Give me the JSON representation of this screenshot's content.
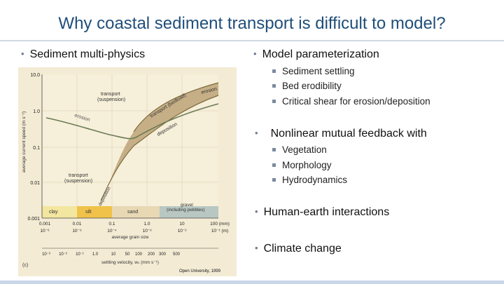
{
  "slide": {
    "title": "Why coastal sediment transport is difficult to model?",
    "left_bullet": "Sediment multi-physics",
    "right_bullets": [
      {
        "label": "Model parameterization",
        "subs": [
          "Sediment settling",
          "Bed erodibility",
          "Critical shear for erosion/deposition"
        ]
      },
      {
        "label": "Nonlinear mutual feedback with",
        "subs": [
          "Vegetation",
          "Morphology",
          "Hydrodynamics"
        ]
      },
      {
        "label": "Human-earth interactions",
        "subs": []
      },
      {
        "label": "Climate change",
        "subs": []
      }
    ]
  },
  "figure": {
    "ylabel": "average current speed (m s⁻¹)",
    "yticks": [
      "10.0",
      "1.0",
      "0.1",
      "0.01",
      "0.001"
    ],
    "xticks_mm": [
      "0.001",
      "0.01",
      "0.1",
      "1.0",
      "10",
      "100 (mm)"
    ],
    "xticks_m": [
      "10⁻⁶",
      "10⁻⁵",
      "10⁻⁴",
      "10⁻³",
      "10⁻²",
      "10⁻¹ (m)"
    ],
    "xlabel": "average grain size",
    "settling_ticks": [
      "10⁻³",
      "10⁻²",
      "10⁻¹",
      "1.0",
      "10",
      "50",
      "100",
      "200",
      "300",
      "500"
    ],
    "settling_label": "settling velocity, wₛ (mm s⁻¹)",
    "region_labels": {
      "transport_suspension_top": "transport\n(suspension)",
      "transport_bedload": "transport (bedload)",
      "erosion_top": "erosion",
      "erosion_curve": "erosion",
      "deposition": "deposition",
      "transport_suspension_bottom": "transport\n(suspension)",
      "deposition_lower": "deposition"
    },
    "size_classes": [
      "clay",
      "silt",
      "sand",
      "gravel\n(including pebbles)"
    ],
    "class_colors": {
      "clay": "#f2e6a0",
      "silt": "#f0c24a",
      "sand": "#e8d8b4",
      "gravel": "#b9c7c2"
    },
    "panel_label": "(c)",
    "credit": "Open University, 1999",
    "colors": {
      "background": "#f3ebd4",
      "band": "#b59a6a",
      "curve": "#7d6a3e",
      "erosion_line": "#6b7b55"
    }
  }
}
